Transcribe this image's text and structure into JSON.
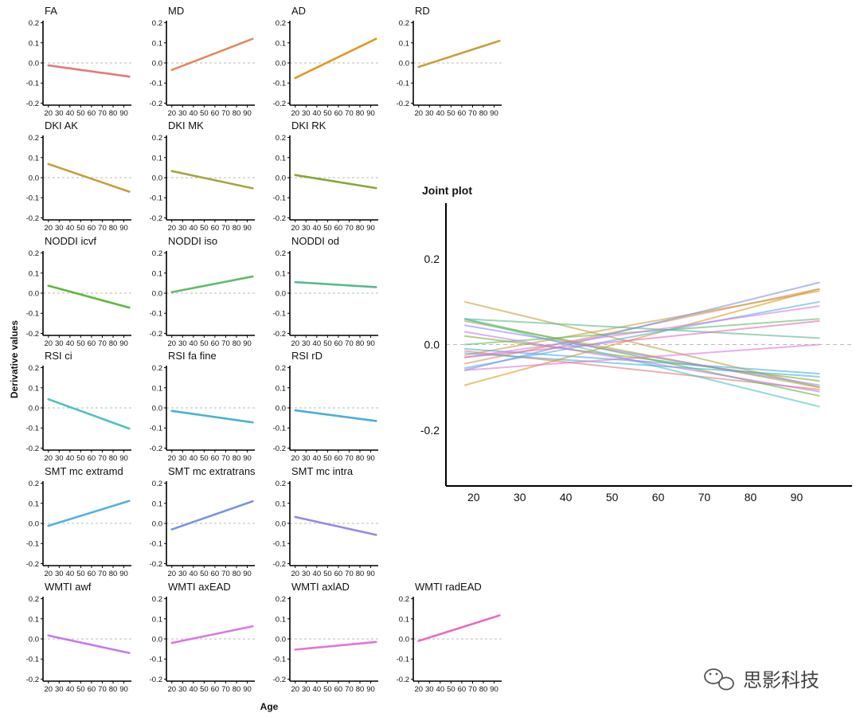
{
  "figure": {
    "ylabel": "Derivative values",
    "xlabel": "Age",
    "watermark": "思影科技",
    "colors": {
      "zero_line": "#bbbbbb",
      "axis": "#000000"
    }
  },
  "chart_data": [
    {
      "type": "line",
      "title": "FA",
      "x": [
        20,
        95
      ],
      "y": [
        -0.012,
        -0.068
      ],
      "color": "#e07b7b",
      "xlim": [
        15,
        97
      ],
      "ylim": [
        -0.21,
        0.21
      ],
      "xticks": [
        20,
        30,
        40,
        50,
        60,
        70,
        80,
        90
      ],
      "yticks": [
        -0.2,
        -0.1,
        0.0,
        0.1,
        0.2
      ],
      "grid": false
    },
    {
      "type": "line",
      "title": "MD",
      "x": [
        20,
        95
      ],
      "y": [
        -0.035,
        0.12
      ],
      "color": "#e08a5e",
      "xlim": [
        15,
        97
      ],
      "ylim": [
        -0.21,
        0.21
      ],
      "xticks": [
        20,
        30,
        40,
        50,
        60,
        70,
        80,
        90
      ],
      "yticks": [
        -0.2,
        -0.1,
        0.0,
        0.1,
        0.2
      ],
      "grid": false
    },
    {
      "type": "line",
      "title": "AD",
      "x": [
        20,
        95
      ],
      "y": [
        -0.075,
        0.12
      ],
      "color": "#de9a1e",
      "xlim": [
        15,
        97
      ],
      "ylim": [
        -0.21,
        0.21
      ],
      "xticks": [
        20,
        30,
        40,
        50,
        60,
        70,
        80,
        90
      ],
      "yticks": [
        -0.2,
        -0.1,
        0.0,
        0.1,
        0.2
      ],
      "grid": false
    },
    {
      "type": "line",
      "title": "RD",
      "x": [
        20,
        95
      ],
      "y": [
        -0.02,
        0.11
      ],
      "color": "#c9a03c",
      "xlim": [
        15,
        97
      ],
      "ylim": [
        -0.21,
        0.21
      ],
      "xticks": [
        20,
        30,
        40,
        50,
        60,
        70,
        80,
        90
      ],
      "yticks": [
        -0.2,
        -0.1,
        0.0,
        0.1,
        0.2
      ],
      "grid": false
    },
    {
      "type": "line",
      "title": "DKI AK",
      "x": [
        20,
        95
      ],
      "y": [
        0.068,
        -0.07
      ],
      "color": "#c4a040",
      "xlim": [
        15,
        97
      ],
      "ylim": [
        -0.21,
        0.21
      ],
      "xticks": [
        20,
        30,
        40,
        50,
        60,
        70,
        80,
        90
      ],
      "yticks": [
        -0.2,
        -0.1,
        0.0,
        0.1,
        0.2
      ],
      "grid": false
    },
    {
      "type": "line",
      "title": "DKI MK",
      "x": [
        20,
        95
      ],
      "y": [
        0.033,
        -0.053
      ],
      "color": "#a8a63c",
      "xlim": [
        15,
        97
      ],
      "ylim": [
        -0.21,
        0.21
      ],
      "xticks": [
        20,
        30,
        40,
        50,
        60,
        70,
        80,
        90
      ],
      "yticks": [
        -0.2,
        -0.1,
        0.0,
        0.1,
        0.2
      ],
      "grid": false
    },
    {
      "type": "line",
      "title": "DKI RK",
      "x": [
        20,
        95
      ],
      "y": [
        0.013,
        -0.052
      ],
      "color": "#88a834",
      "xlim": [
        15,
        97
      ],
      "ylim": [
        -0.21,
        0.21
      ],
      "xticks": [
        20,
        30,
        40,
        50,
        60,
        70,
        80,
        90
      ],
      "yticks": [
        -0.2,
        -0.1,
        0.0,
        0.1,
        0.2
      ],
      "grid": false
    },
    {
      "type": "line",
      "title": "NODDI icvf",
      "x": [
        20,
        95
      ],
      "y": [
        0.037,
        -0.072
      ],
      "color": "#5fb83c",
      "xlim": [
        15,
        97
      ],
      "ylim": [
        -0.21,
        0.21
      ],
      "xticks": [
        20,
        30,
        40,
        50,
        60,
        70,
        80,
        90
      ],
      "yticks": [
        -0.2,
        -0.1,
        0.0,
        0.1,
        0.2
      ],
      "grid": false
    },
    {
      "type": "line",
      "title": "NODDI iso",
      "x": [
        20,
        95
      ],
      "y": [
        0.005,
        0.083
      ],
      "color": "#62bb6a",
      "xlim": [
        15,
        97
      ],
      "ylim": [
        -0.21,
        0.21
      ],
      "xticks": [
        20,
        30,
        40,
        50,
        60,
        70,
        80,
        90
      ],
      "yticks": [
        -0.2,
        -0.1,
        0.0,
        0.1,
        0.2
      ],
      "grid": false
    },
    {
      "type": "line",
      "title": "NODDI od",
      "x": [
        20,
        95
      ],
      "y": [
        0.055,
        0.03
      ],
      "color": "#55b98e",
      "xlim": [
        15,
        97
      ],
      "ylim": [
        -0.21,
        0.21
      ],
      "xticks": [
        20,
        30,
        40,
        50,
        60,
        70,
        80,
        90
      ],
      "yticks": [
        -0.2,
        -0.1,
        0.0,
        0.1,
        0.2
      ],
      "grid": false
    },
    {
      "type": "line",
      "title": "RSI ci",
      "x": [
        20,
        95
      ],
      "y": [
        0.043,
        -0.103
      ],
      "color": "#4dc3c1",
      "xlim": [
        15,
        97
      ],
      "ylim": [
        -0.21,
        0.21
      ],
      "xticks": [
        20,
        30,
        40,
        50,
        60,
        70,
        80,
        90
      ],
      "yticks": [
        -0.2,
        -0.1,
        0.0,
        0.1,
        0.2
      ],
      "grid": false
    },
    {
      "type": "line",
      "title": "RSI fa fine",
      "x": [
        20,
        95
      ],
      "y": [
        -0.015,
        -0.072
      ],
      "color": "#46b3d4",
      "xlim": [
        15,
        97
      ],
      "ylim": [
        -0.21,
        0.21
      ],
      "xticks": [
        20,
        30,
        40,
        50,
        60,
        70,
        80,
        90
      ],
      "yticks": [
        -0.2,
        -0.1,
        0.0,
        0.1,
        0.2
      ],
      "grid": false
    },
    {
      "type": "line",
      "title": "RSI rD",
      "x": [
        20,
        95
      ],
      "y": [
        -0.012,
        -0.065
      ],
      "color": "#48aee0",
      "xlim": [
        15,
        97
      ],
      "ylim": [
        -0.21,
        0.21
      ],
      "xticks": [
        20,
        30,
        40,
        50,
        60,
        70,
        80,
        90
      ],
      "yticks": [
        -0.2,
        -0.1,
        0.0,
        0.1,
        0.2
      ],
      "grid": false
    },
    {
      "type": "line",
      "title": "SMT mc extramd",
      "x": [
        20,
        95
      ],
      "y": [
        -0.012,
        0.112
      ],
      "color": "#4fb2e3",
      "xlim": [
        15,
        97
      ],
      "ylim": [
        -0.21,
        0.21
      ],
      "xticks": [
        20,
        30,
        40,
        50,
        60,
        70,
        80,
        90
      ],
      "yticks": [
        -0.2,
        -0.1,
        0.0,
        0.1,
        0.2
      ],
      "grid": false
    },
    {
      "type": "line",
      "title": "SMT mc extratrans",
      "x": [
        20,
        95
      ],
      "y": [
        -0.03,
        0.11
      ],
      "color": "#7a92e6",
      "xlim": [
        15,
        97
      ],
      "ylim": [
        -0.21,
        0.21
      ],
      "xticks": [
        20,
        30,
        40,
        50,
        60,
        70,
        80,
        90
      ],
      "yticks": [
        -0.2,
        -0.1,
        0.0,
        0.1,
        0.2
      ],
      "grid": false
    },
    {
      "type": "line",
      "title": "SMT mc intra",
      "x": [
        20,
        95
      ],
      "y": [
        0.032,
        -0.057
      ],
      "color": "#9b85e8",
      "xlim": [
        15,
        97
      ],
      "ylim": [
        -0.21,
        0.21
      ],
      "xticks": [
        20,
        30,
        40,
        50,
        60,
        70,
        80,
        90
      ],
      "yticks": [
        -0.2,
        -0.1,
        0.0,
        0.1,
        0.2
      ],
      "grid": false
    },
    {
      "type": "line",
      "title": "WMTI awf",
      "x": [
        20,
        95
      ],
      "y": [
        0.017,
        -0.07
      ],
      "color": "#c57be8",
      "xlim": [
        15,
        97
      ],
      "ylim": [
        -0.21,
        0.21
      ],
      "xticks": [
        20,
        30,
        40,
        50,
        60,
        70,
        80,
        90
      ],
      "yticks": [
        -0.2,
        -0.1,
        0.0,
        0.1,
        0.2
      ],
      "grid": false
    },
    {
      "type": "line",
      "title": "WMTI axEAD",
      "x": [
        20,
        95
      ],
      "y": [
        -0.02,
        0.063
      ],
      "color": "#d77ae3",
      "xlim": [
        15,
        97
      ],
      "ylim": [
        -0.21,
        0.21
      ],
      "xticks": [
        20,
        30,
        40,
        50,
        60,
        70,
        80,
        90
      ],
      "yticks": [
        -0.2,
        -0.1,
        0.0,
        0.1,
        0.2
      ],
      "grid": false
    },
    {
      "type": "line",
      "title": "WMTI axlAD",
      "x": [
        20,
        95
      ],
      "y": [
        -0.053,
        -0.015
      ],
      "color": "#e176d6",
      "xlim": [
        15,
        97
      ],
      "ylim": [
        -0.21,
        0.21
      ],
      "xticks": [
        20,
        30,
        40,
        50,
        60,
        70,
        80,
        90
      ],
      "yticks": [
        -0.2,
        -0.1,
        0.0,
        0.1,
        0.2
      ],
      "grid": false
    },
    {
      "type": "line",
      "title": "WMTI radEAD",
      "x": [
        20,
        95
      ],
      "y": [
        -0.01,
        0.117
      ],
      "color": "#ea6bbd",
      "xlim": [
        15,
        97
      ],
      "ylim": [
        -0.21,
        0.21
      ],
      "xticks": [
        20,
        30,
        40,
        50,
        60,
        70,
        80,
        90
      ],
      "yticks": [
        -0.2,
        -0.1,
        0.0,
        0.1,
        0.2
      ],
      "grid": false
    },
    {
      "type": "line",
      "title": "Joint plot",
      "x": [
        18,
        95
      ],
      "overlay": "all 20 fitted lines drawn semi-transparent on one set of axes",
      "xlim": [
        14,
        102
      ],
      "ylim": [
        -0.33,
        0.33
      ],
      "xticks": [
        20,
        30,
        40,
        50,
        60,
        70,
        80,
        90
      ],
      "yticks": [
        -0.2,
        0.0,
        0.2
      ],
      "grid": false,
      "series": [
        {
          "y": [
            -0.015,
            -0.105
          ],
          "color": "#e07b7b"
        },
        {
          "y": [
            -0.045,
            0.13
          ],
          "color": "#e08a5e"
        },
        {
          "y": [
            -0.095,
            0.13
          ],
          "color": "#de9a1e"
        },
        {
          "y": [
            -0.025,
            0.125
          ],
          "color": "#c9a03c"
        },
        {
          "y": [
            0.1,
            -0.1
          ],
          "color": "#c4a040"
        },
        {
          "y": [
            0.055,
            -0.1
          ],
          "color": "#a8a63c"
        },
        {
          "y": [
            0.02,
            -0.085
          ],
          "color": "#88a834"
        },
        {
          "y": [
            0.06,
            -0.12
          ],
          "color": "#5fb83c"
        },
        {
          "y": [
            0.0,
            0.06
          ],
          "color": "#62bb6a"
        },
        {
          "y": [
            0.06,
            0.015
          ],
          "color": "#55b98e"
        },
        {
          "y": [
            0.06,
            -0.145
          ],
          "color": "#4dc3c1"
        },
        {
          "y": [
            -0.02,
            -0.075
          ],
          "color": "#46b3d4"
        },
        {
          "y": [
            -0.01,
            -0.068
          ],
          "color": "#48aee0"
        },
        {
          "y": [
            -0.055,
            0.1
          ],
          "color": "#4fb2e3"
        },
        {
          "y": [
            -0.06,
            0.145
          ],
          "color": "#7a92e6"
        },
        {
          "y": [
            0.045,
            -0.095
          ],
          "color": "#9b85e8"
        },
        {
          "y": [
            0.03,
            -0.11
          ],
          "color": "#c57be8"
        },
        {
          "y": [
            -0.03,
            0.09
          ],
          "color": "#d77ae3"
        },
        {
          "y": [
            -0.06,
            0.0
          ],
          "color": "#e176d6"
        },
        {
          "y": [
            -0.03,
            0.055
          ],
          "color": "#ea6bbd"
        }
      ]
    }
  ]
}
